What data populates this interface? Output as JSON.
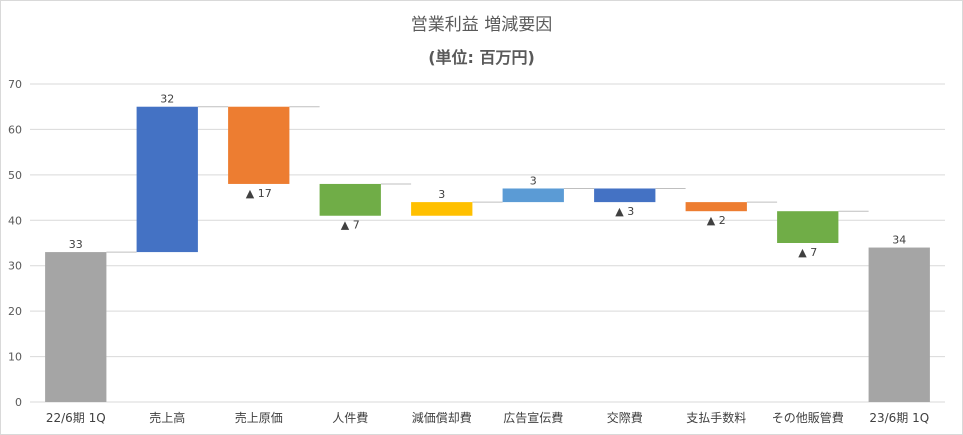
{
  "chart_data": {
    "type": "waterfall",
    "title": "営業利益 増減要因",
    "subtitle": "(単位: 百万円)",
    "ylim": [
      0,
      70
    ],
    "yticks": [
      "0",
      "10",
      "20",
      "30",
      "40",
      "50",
      "60",
      "70"
    ],
    "grid": true,
    "categories": [
      "22/6期 1Q",
      "売上高",
      "売上原価",
      "人件費",
      "減価償却費",
      "広告宣伝費",
      "交際費",
      "支払手数料",
      "その他販管費",
      "23/6期 1Q"
    ],
    "bars": [
      {
        "category": "22/6期 1Q",
        "base": 0,
        "top": 33,
        "label": "33",
        "color": "#a5a5a5"
      },
      {
        "category": "売上高",
        "base": 33,
        "top": 65,
        "label": "32",
        "color": "#4472c4"
      },
      {
        "category": "売上原価",
        "base": 48,
        "top": 65,
        "label": "▲ 17",
        "color": "#ed7d31"
      },
      {
        "category": "人件費",
        "base": 41,
        "top": 48,
        "label": "▲ 7",
        "color": "#70ad47"
      },
      {
        "category": "減価償却費",
        "base": 41,
        "top": 44,
        "label": "3",
        "color": "#ffc000"
      },
      {
        "category": "広告宣伝費",
        "base": 44,
        "top": 47,
        "label": "3",
        "color": "#5b9bd5"
      },
      {
        "category": "交際費",
        "base": 44,
        "top": 47,
        "label": "▲ 3",
        "color": "#4472c4"
      },
      {
        "category": "支払手数料",
        "base": 42,
        "top": 44,
        "label": "▲ 2",
        "color": "#ed7d31"
      },
      {
        "category": "その他販管費",
        "base": 35,
        "top": 42,
        "label": "▲ 7",
        "color": "#70ad47"
      },
      {
        "category": "23/6期 1Q",
        "base": 0,
        "top": 34,
        "label": "34",
        "color": "#a5a5a5"
      }
    ]
  }
}
